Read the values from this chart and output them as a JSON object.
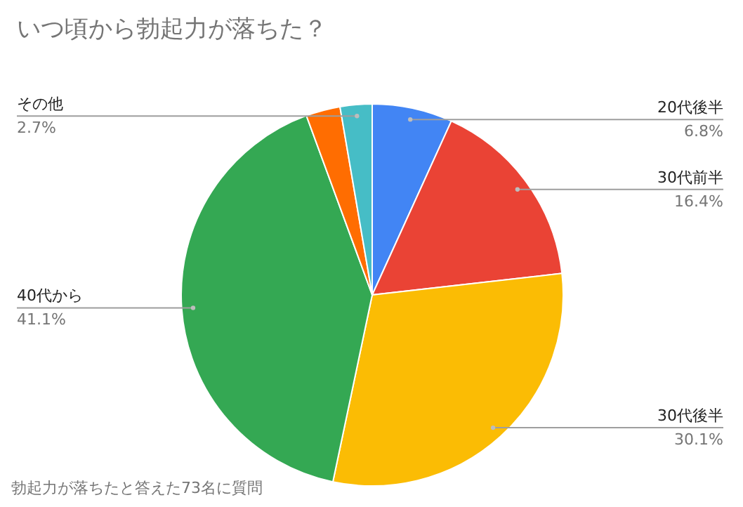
{
  "chart_data": {
    "type": "pie",
    "title": "いつ頃から勃起力が落ちた？",
    "categories": [
      "20代後半",
      "30代前半",
      "30代後半",
      "40代から",
      null,
      "その他"
    ],
    "values": [
      6.8,
      16.4,
      30.1,
      41.1,
      2.9,
      2.7
    ],
    "colors": [
      "#4285f4",
      "#ea4335",
      "#fbbc04",
      "#34a853",
      "#ff6d01",
      "#46bdc6"
    ],
    "value_labels": [
      "6.8%",
      "16.4%",
      "30.1%",
      "41.1%",
      null,
      "2.7%"
    ],
    "annotations": [
      "勃起力が落ちたと答えた73名に質問"
    ]
  }
}
